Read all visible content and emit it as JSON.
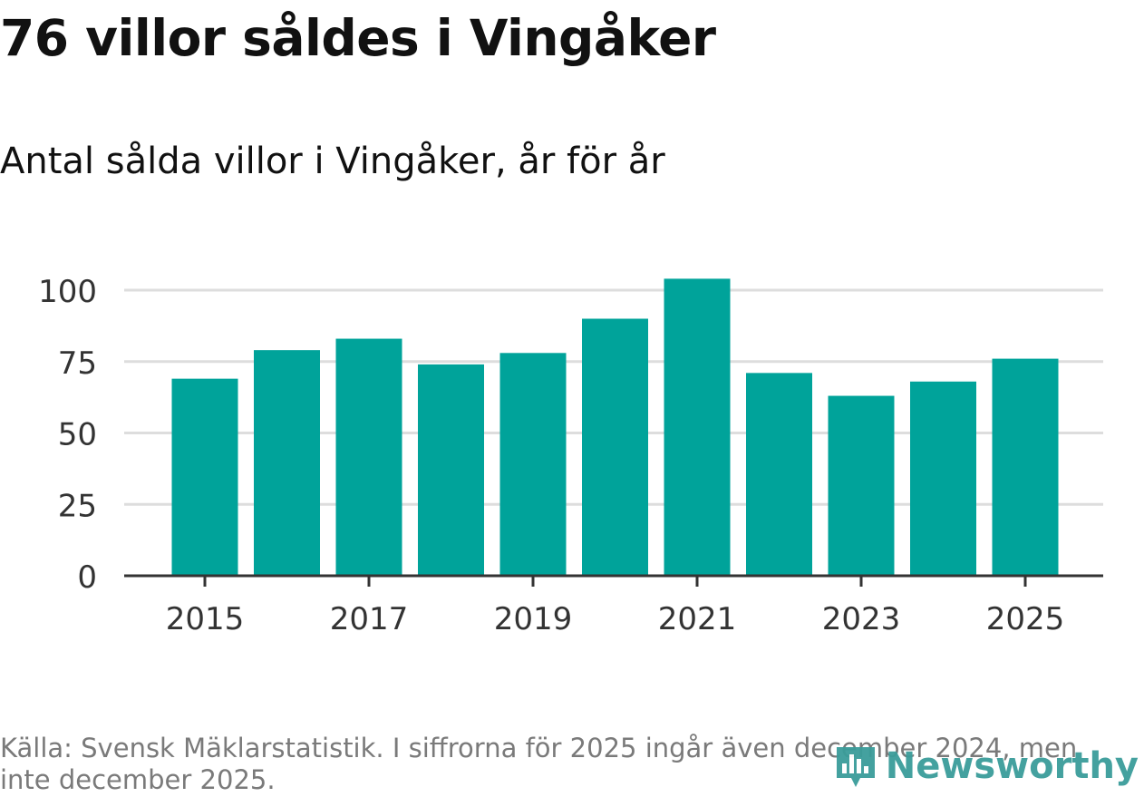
{
  "title": "76 villor såldes i Vingåker",
  "subtitle": "Antal sålda villor i Vingåker, år för år",
  "footer": {
    "source": "Källa: Svensk Mäklarstatistik. I siffrorna för 2025 ingår även december 2024, men inte december 2025.",
    "brand": "Newsworthy"
  },
  "colors": {
    "bar": "#00a39a",
    "grid": "#dddddd",
    "axis": "#333333",
    "tick_label": "#333333",
    "brand": "#3a9d9a"
  },
  "chart_data": {
    "type": "bar",
    "title": "76 villor såldes i Vingåker",
    "subtitle": "Antal sålda villor i Vingåker, år för år",
    "xlabel": "",
    "ylabel": "",
    "categories": [
      "2015",
      "2016",
      "2017",
      "2018",
      "2019",
      "2020",
      "2021",
      "2022",
      "2023",
      "2024",
      "2025"
    ],
    "values": [
      69,
      79,
      83,
      74,
      78,
      90,
      104,
      71,
      63,
      68,
      76
    ],
    "x_tick_labels": [
      "2015",
      "2017",
      "2019",
      "2021",
      "2023",
      "2025"
    ],
    "y_ticks": [
      0,
      25,
      50,
      75,
      100
    ],
    "ylim": [
      0,
      104
    ],
    "grid": true,
    "legend": "none"
  }
}
